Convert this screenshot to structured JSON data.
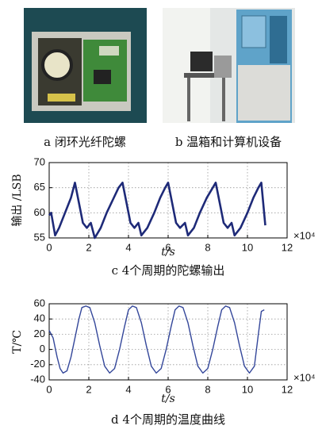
{
  "figure": {
    "photo_captions": [
      "a 闭环光纤陀螺",
      "b 温箱和计算机设备"
    ]
  },
  "chart_data": [
    {
      "type": "line",
      "caption": "c 4个周期的陀螺输出",
      "ylabel": "输出 /LSB",
      "xlabel": "t/s",
      "x_multiplier": "×10⁴",
      "xlim": [
        0,
        12
      ],
      "xticks": [
        0,
        2,
        4,
        6,
        8,
        10,
        12
      ],
      "ylim": [
        55,
        70
      ],
      "yticks": [
        55,
        60,
        65,
        70
      ],
      "grid": true,
      "series": [
        {
          "color": "#1e2a78",
          "x": [
            0,
            0.1,
            0.3,
            0.5,
            0.8,
            1.1,
            1.3,
            1.5,
            1.7,
            1.9,
            2.1,
            2.3,
            2.6,
            2.9,
            3.2,
            3.5,
            3.7,
            3.9,
            4.1,
            4.3,
            4.5,
            4.65,
            4.95,
            5.3,
            5.6,
            5.85,
            6.0,
            6.2,
            6.4,
            6.6,
            6.85,
            7.0,
            7.3,
            7.6,
            7.95,
            8.25,
            8.4,
            8.6,
            8.8,
            9.0,
            9.2,
            9.35,
            9.65,
            10.0,
            10.3,
            10.55,
            10.7,
            10.9
          ],
          "values": [
            59.5,
            60,
            55.5,
            57,
            60,
            63,
            66,
            62,
            58,
            57,
            58,
            55,
            57,
            60,
            62.5,
            65,
            66,
            62,
            58,
            57,
            58,
            55.5,
            57,
            60,
            63,
            65,
            66,
            62,
            58,
            57,
            58,
            55.5,
            57,
            60,
            63,
            65,
            66,
            62,
            58,
            57,
            58,
            55.5,
            57,
            60,
            63,
            65,
            66,
            57.5
          ]
        }
      ]
    },
    {
      "type": "line",
      "caption": "d 4个周期的温度曲线",
      "ylabel": "T/℃",
      "xlabel": "t/s",
      "x_multiplier": "×10⁴",
      "xlim": [
        0,
        12
      ],
      "xticks": [
        0,
        2,
        4,
        6,
        8,
        10,
        12
      ],
      "ylim": [
        -40,
        60
      ],
      "yticks": [
        -40,
        -20,
        0,
        20,
        40,
        60
      ],
      "grid": true,
      "series": [
        {
          "color": "#34479a",
          "x": [
            0,
            0.2,
            0.4,
            0.55,
            0.7,
            0.9,
            1.1,
            1.3,
            1.5,
            1.65,
            1.85,
            2.05,
            2.3,
            2.55,
            2.8,
            3.05,
            3.3,
            3.55,
            3.8,
            4.0,
            4.2,
            4.4,
            4.65,
            4.9,
            5.15,
            5.4,
            5.65,
            5.9,
            6.15,
            6.35,
            6.55,
            6.75,
            7.0,
            7.25,
            7.5,
            7.75,
            8.0,
            8.25,
            8.5,
            8.7,
            8.9,
            9.1,
            9.35,
            9.6,
            9.85,
            10.1,
            10.35,
            10.55,
            10.7,
            10.85
          ],
          "values": [
            25,
            15,
            -10,
            -25,
            -31,
            -28,
            -10,
            15,
            40,
            55,
            57,
            55,
            35,
            5,
            -22,
            -31,
            -25,
            0,
            30,
            52,
            57,
            55,
            35,
            5,
            -22,
            -31,
            -25,
            0,
            30,
            52,
            57,
            55,
            35,
            5,
            -22,
            -31,
            -25,
            0,
            30,
            52,
            57,
            55,
            35,
            5,
            -22,
            -31,
            -22,
            20,
            50,
            52
          ]
        }
      ]
    }
  ]
}
